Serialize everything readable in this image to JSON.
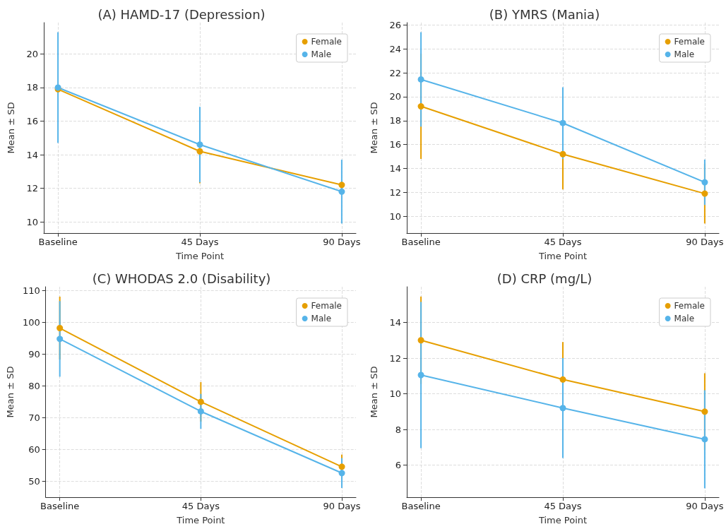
{
  "chart_data": [
    {
      "type": "line",
      "title": "(A) HAMD-17 (Depression)",
      "xlabel": "Time Point",
      "ylabel": "Mean ± SD",
      "categories": [
        "Baseline",
        "45 Days",
        "90 Days"
      ],
      "ylim": [
        9.33,
        21.87
      ],
      "yticks": [
        10,
        12,
        14,
        16,
        18,
        20
      ],
      "grid": true,
      "legend": "top right",
      "marker": "circle",
      "series": [
        {
          "name": "Female",
          "color": "#e69f00",
          "values": [
            17.9,
            14.2,
            12.2
          ],
          "errors": [
            null,
            1.9,
            null
          ]
        },
        {
          "name": "Male",
          "color": "#56b4e9",
          "values": [
            18.0,
            14.6,
            11.8
          ],
          "errors": [
            3.3,
            2.25,
            1.9
          ]
        }
      ]
    },
    {
      "type": "line",
      "title": "(B) YMRS (Mania)",
      "xlabel": "Time Point",
      "ylabel": "Mean ± SD",
      "categories": [
        "Baseline",
        "45 Days",
        "90 Days"
      ],
      "ylim": [
        8.6,
        26.2
      ],
      "yticks": [
        10,
        12,
        14,
        16,
        18,
        20,
        22,
        24,
        26
      ],
      "grid": true,
      "legend": "top right",
      "marker": "circle",
      "series": [
        {
          "name": "Female",
          "color": "#e69f00",
          "values": [
            19.2,
            15.2,
            11.9
          ],
          "errors": [
            4.4,
            2.95,
            2.5
          ]
        },
        {
          "name": "Male",
          "color": "#56b4e9",
          "values": [
            21.45,
            17.8,
            12.85
          ],
          "errors": [
            3.95,
            3.0,
            1.9
          ]
        }
      ]
    },
    {
      "type": "line",
      "title": "(C) WHODAS 2.0 (Disability)",
      "xlabel": "Time Point",
      "ylabel": "Mean ± SD",
      "categories": [
        "Baseline",
        "45 Days",
        "90 Days"
      ],
      "ylim": [
        45,
        111.2
      ],
      "yticks": [
        50,
        60,
        70,
        80,
        90,
        100,
        110
      ],
      "grid": true,
      "legend": "top right",
      "marker": "circle",
      "series": [
        {
          "name": "Female",
          "color": "#e69f00",
          "values": [
            98.2,
            75.0,
            54.6
          ],
          "errors": [
            9.9,
            6.2,
            3.8
          ]
        },
        {
          "name": "Male",
          "color": "#56b4e9",
          "values": [
            94.8,
            72.0,
            52.6
          ],
          "errors": [
            11.9,
            5.5,
            4.7
          ]
        }
      ]
    },
    {
      "type": "line",
      "title": "(D) CRP (mg/L)",
      "xlabel": "Time Point",
      "ylabel": "Mean ± SD",
      "categories": [
        "Baseline",
        "45 Days",
        "90 Days"
      ],
      "ylim": [
        4.2,
        16.0
      ],
      "yticks": [
        6,
        8,
        10,
        12,
        14
      ],
      "grid": true,
      "legend": "top right",
      "marker": "circle",
      "series": [
        {
          "name": "Female",
          "color": "#e69f00",
          "values": [
            13.0,
            10.8,
            9.0
          ],
          "errors": [
            2.45,
            2.1,
            2.15
          ]
        },
        {
          "name": "Male",
          "color": "#56b4e9",
          "values": [
            11.05,
            9.2,
            7.45
          ],
          "errors": [
            4.1,
            2.8,
            2.75
          ]
        }
      ]
    }
  ]
}
